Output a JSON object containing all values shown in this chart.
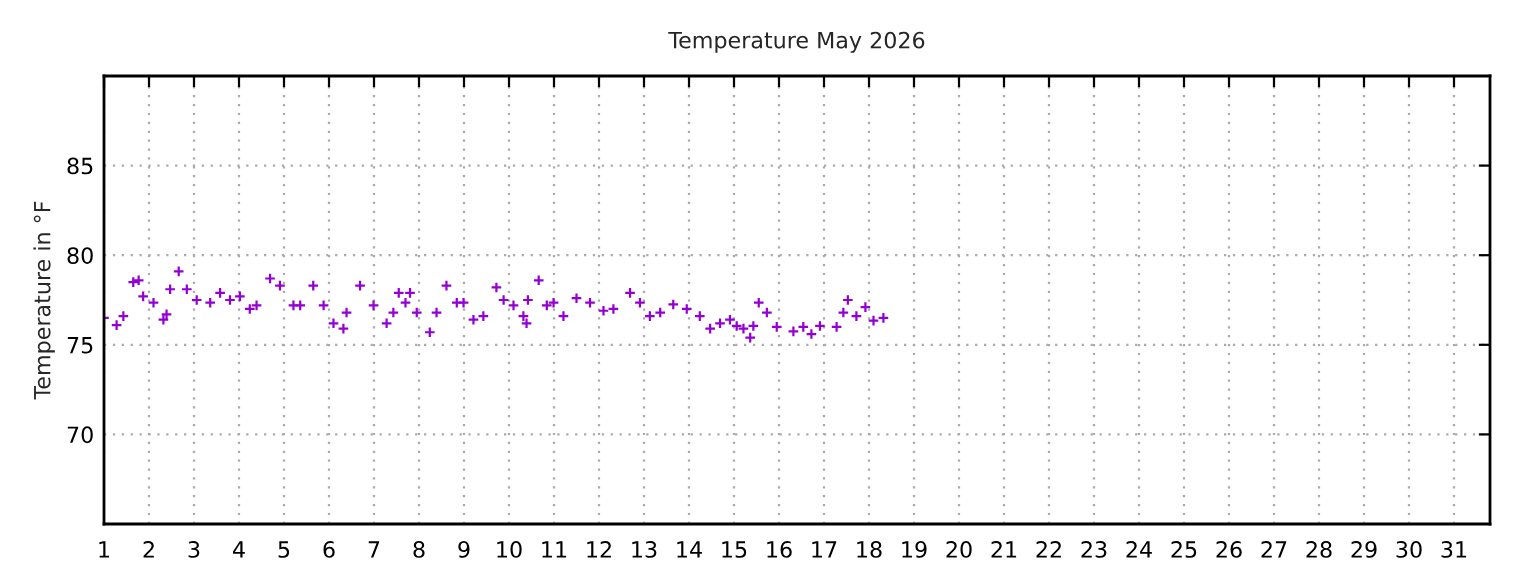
{
  "chart_data": {
    "type": "scatter",
    "title": "Temperature May 2026",
    "ylabel": "Temperature in °F",
    "marker": "cross",
    "grid": true,
    "legend": false,
    "xlim": [
      1,
      31.8
    ],
    "xticks": [
      1,
      2,
      3,
      4,
      5,
      6,
      7,
      8,
      9,
      10,
      11,
      12,
      13,
      14,
      15,
      16,
      17,
      18,
      19,
      20,
      21,
      22,
      23,
      24,
      25,
      26,
      27,
      28,
      29,
      30,
      31
    ],
    "ylim": [
      65,
      90
    ],
    "yticks": [
      70,
      75,
      80,
      85
    ],
    "series": [
      {
        "color": "#9400d3",
        "x": [
          1.0,
          1.28,
          1.43,
          1.65,
          1.77,
          1.87,
          2.1,
          2.32,
          2.39,
          2.47,
          2.66,
          2.84,
          3.06,
          3.36,
          3.58,
          3.8,
          4.02,
          4.24,
          4.39,
          4.69,
          4.91,
          5.21,
          5.36,
          5.65,
          5.88,
          6.1,
          6.32,
          6.39,
          6.69,
          6.99,
          7.28,
          7.43,
          7.55,
          7.7,
          7.8,
          7.95,
          8.24,
          8.39,
          8.61,
          8.84,
          8.99,
          9.21,
          9.43,
          9.72,
          9.88,
          10.1,
          10.32,
          10.39,
          10.42,
          10.66,
          10.84,
          10.99,
          11.21,
          11.5,
          11.8,
          12.1,
          12.32,
          12.69,
          12.91,
          13.13,
          13.36,
          13.65,
          13.95,
          14.24,
          14.47,
          14.69,
          14.91,
          15.06,
          15.21,
          15.36,
          15.43,
          15.55,
          15.73,
          15.95,
          16.32,
          16.54,
          16.72,
          16.91,
          17.28,
          17.43,
          17.53,
          17.72,
          17.92,
          18.1,
          18.32
        ],
        "values": [
          76.5,
          76.1,
          76.6,
          78.5,
          78.6,
          77.7,
          77.35,
          76.4,
          76.7,
          78.1,
          79.1,
          78.1,
          77.5,
          77.35,
          77.9,
          77.5,
          77.7,
          77.0,
          77.2,
          78.7,
          78.3,
          77.2,
          77.2,
          78.3,
          77.2,
          76.2,
          75.9,
          76.8,
          78.3,
          77.2,
          76.2,
          76.8,
          77.9,
          77.35,
          77.9,
          76.8,
          75.7,
          76.8,
          78.3,
          77.35,
          77.35,
          76.4,
          76.6,
          78.2,
          77.5,
          77.2,
          76.6,
          76.2,
          77.5,
          78.6,
          77.2,
          77.35,
          76.6,
          77.6,
          77.35,
          76.9,
          77.0,
          77.9,
          77.35,
          76.6,
          76.8,
          77.25,
          77.0,
          76.6,
          75.9,
          76.2,
          76.4,
          76.05,
          75.9,
          75.4,
          76.05,
          77.35,
          76.8,
          76.0,
          75.75,
          76.0,
          75.6,
          76.05,
          76.0,
          76.8,
          77.5,
          76.6,
          77.1,
          76.35,
          76.5
        ]
      }
    ]
  }
}
